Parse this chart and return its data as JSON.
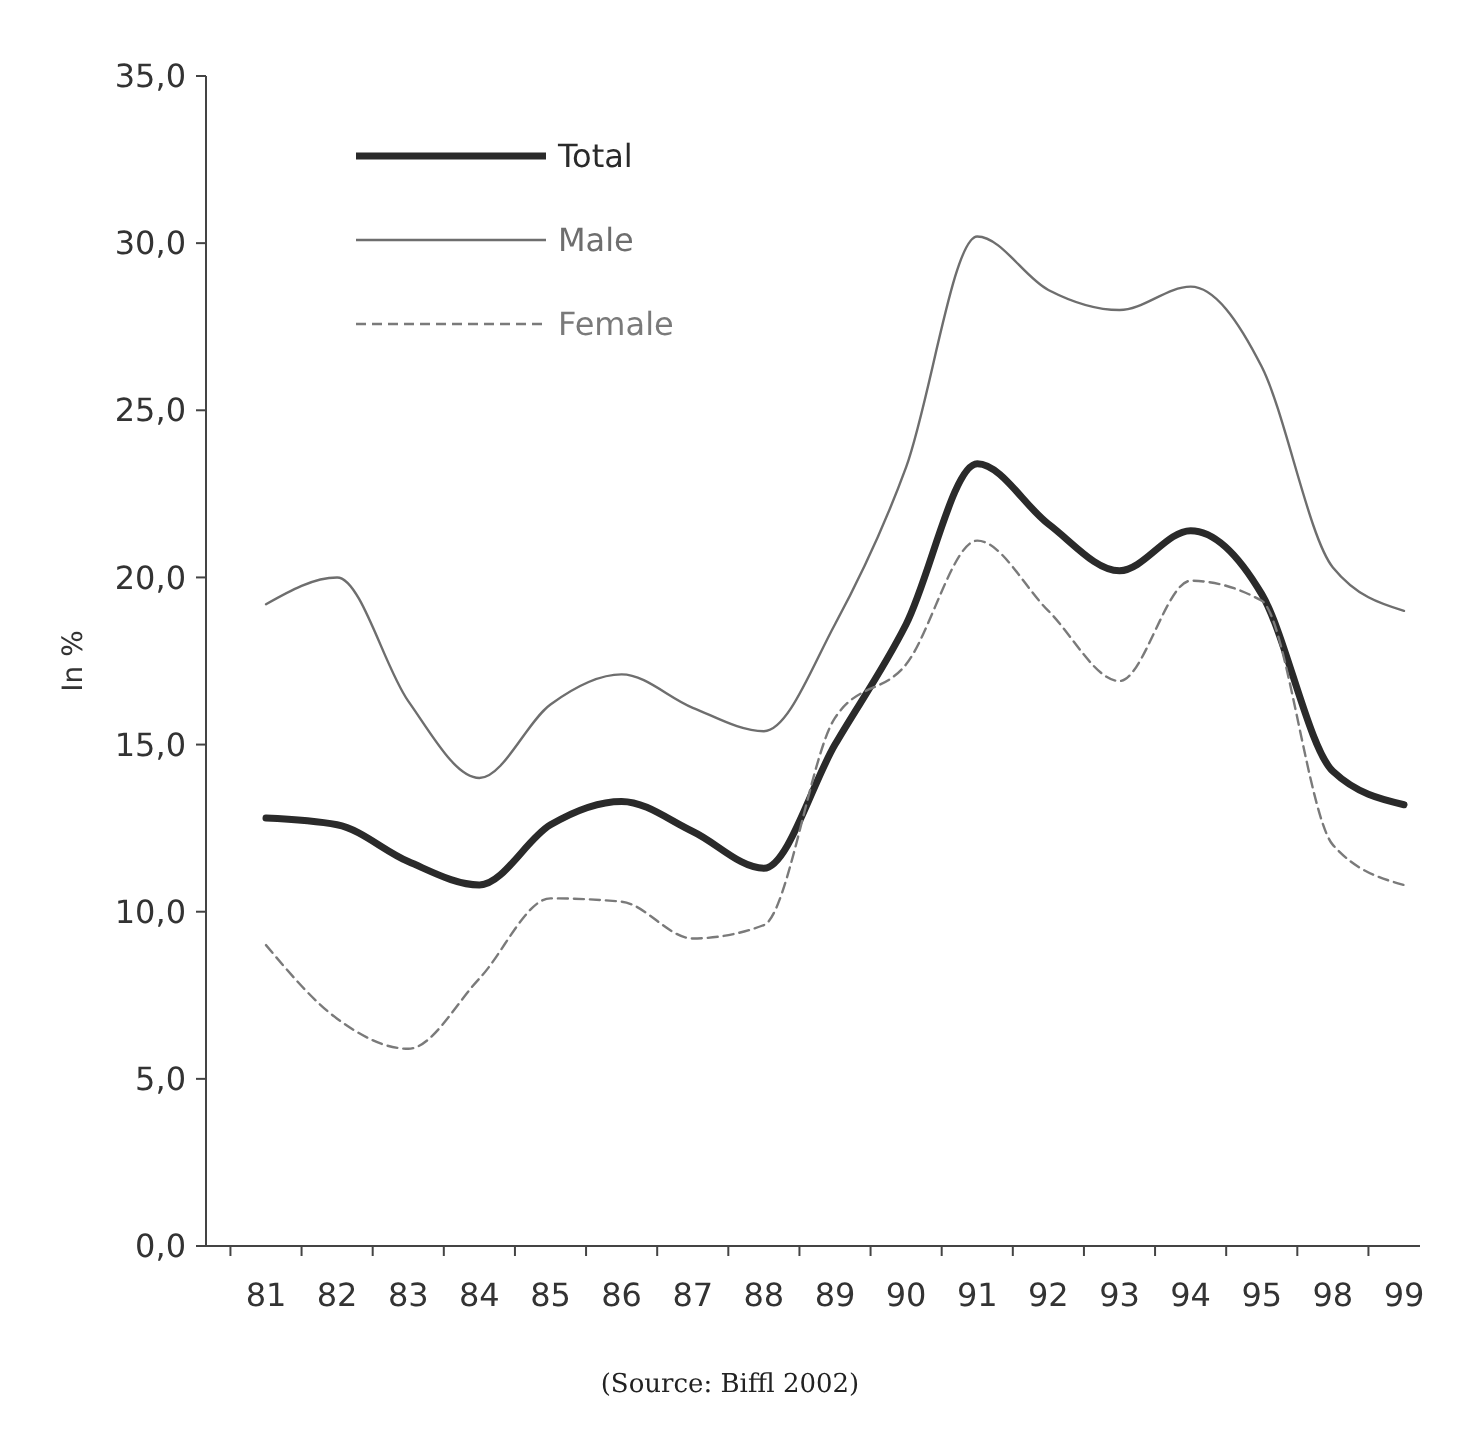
{
  "chart_data": {
    "type": "line",
    "ylabel": "In %",
    "categories": [
      "81",
      "82",
      "83",
      "84",
      "85",
      "86",
      "87",
      "88",
      "89",
      "90",
      "91",
      "92",
      "93",
      "94",
      "95",
      "98",
      "99"
    ],
    "ylim": [
      0,
      35
    ],
    "yticks": [
      {
        "value": 0,
        "label": "0,0"
      },
      {
        "value": 5,
        "label": "5,0"
      },
      {
        "value": 10,
        "label": "10,0"
      },
      {
        "value": 15,
        "label": "15,0"
      },
      {
        "value": 20,
        "label": "20,0"
      },
      {
        "value": 25,
        "label": "25,0"
      },
      {
        "value": 30,
        "label": "30,0"
      },
      {
        "value": 35,
        "label": "35,0"
      }
    ],
    "grid": false,
    "legend": "top left",
    "marker": "none",
    "annotations": [
      "(Source: Biffl 2002)"
    ],
    "series": [
      {
        "name": "Total",
        "color": "#2a2a2a",
        "line_style": "solid",
        "values": [
          12.8,
          12.6,
          11.5,
          10.8,
          12.6,
          13.3,
          12.4,
          11.3,
          15.0,
          18.6,
          23.4,
          21.6,
          20.2,
          21.4,
          19.5,
          14.2,
          13.2
        ]
      },
      {
        "name": "Male",
        "color": "#6e6e6e",
        "line_style": "solid",
        "values": [
          19.2,
          20.0,
          16.3,
          14.0,
          16.2,
          17.1,
          16.1,
          15.4,
          18.6,
          23.3,
          30.2,
          28.6,
          28.0,
          28.7,
          26.3,
          20.3,
          19.0
        ]
      },
      {
        "name": "Female",
        "color": "#7a7a7a",
        "line_style": "dashed",
        "values": [
          9.0,
          6.8,
          5.9,
          8.0,
          10.4,
          10.3,
          9.2,
          9.6,
          15.8,
          17.4,
          21.1,
          19.0,
          16.9,
          19.9,
          19.3,
          12.0,
          10.8
        ]
      }
    ]
  }
}
